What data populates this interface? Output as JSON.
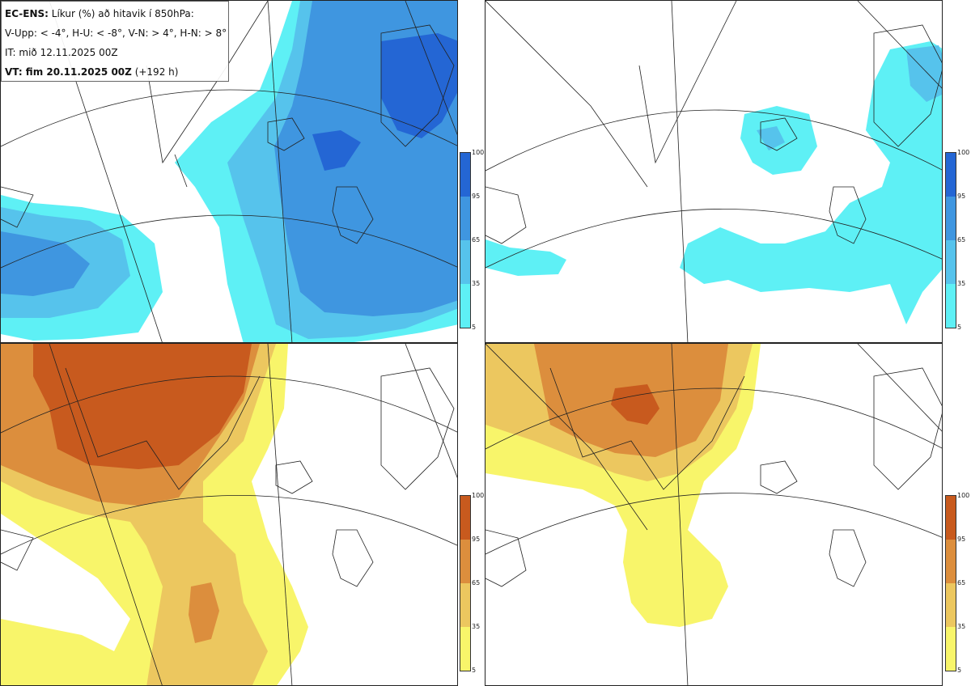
{
  "info": {
    "line1_bold": "EC-ENS:",
    "line1_rest": " Líkur (%) að hitavik í 850hPa:",
    "line2": "V-Upp: < -4°, H-U: < -8°, V-N: > 4°, H-N: > 8°",
    "line3": "IT: mið 12.11.2025 00Z",
    "line4_bold": "VT: fim 20.11.2025 00Z",
    "line4_rest": " (+192 h)"
  },
  "legend_ticks": [
    "100",
    "95",
    "65",
    "35",
    "5"
  ],
  "colors": {
    "cold_5": "#5ef0f5",
    "cold_35": "#56c3ec",
    "cold_65": "#3f96e0",
    "cold_95": "#2466d4",
    "warm_5": "#f8f56a",
    "warm_35": "#ecc75f",
    "warm_65": "#dc8e3d",
    "warm_95": "#c85a1e"
  },
  "panels": [
    {
      "id": "cold-minus-4",
      "scheme": "cold"
    },
    {
      "id": "cold-minus-8",
      "scheme": "cold"
    },
    {
      "id": "warm-plus-4",
      "scheme": "warm"
    },
    {
      "id": "warm-plus-8",
      "scheme": "warm"
    }
  ]
}
